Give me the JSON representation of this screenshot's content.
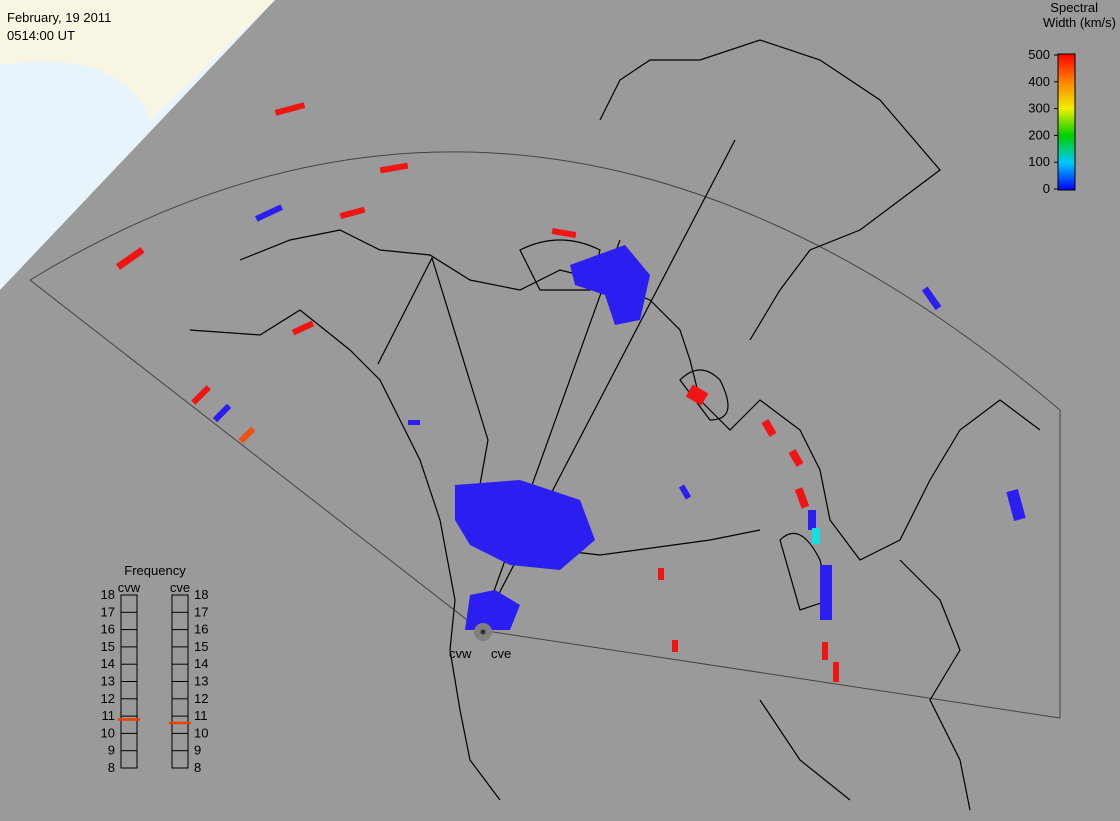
{
  "header": {
    "date": "February, 19 2011",
    "time": "0514:00 UT"
  },
  "colorbar": {
    "title": [
      "Spectral",
      "Width (km/s)"
    ],
    "range": [
      0,
      500
    ],
    "ticks": [
      0,
      100,
      200,
      300,
      400,
      500
    ]
  },
  "frequency": {
    "title": "Frequency",
    "range": [
      8,
      18
    ],
    "ticks": [
      8,
      9,
      10,
      11,
      12,
      13,
      14,
      15,
      16,
      17,
      18
    ],
    "radars": [
      {
        "name": "cvw",
        "value": 10.8
      },
      {
        "name": "cve",
        "value": 10.6
      }
    ]
  },
  "stations": [
    "cvw",
    "cve"
  ]
}
